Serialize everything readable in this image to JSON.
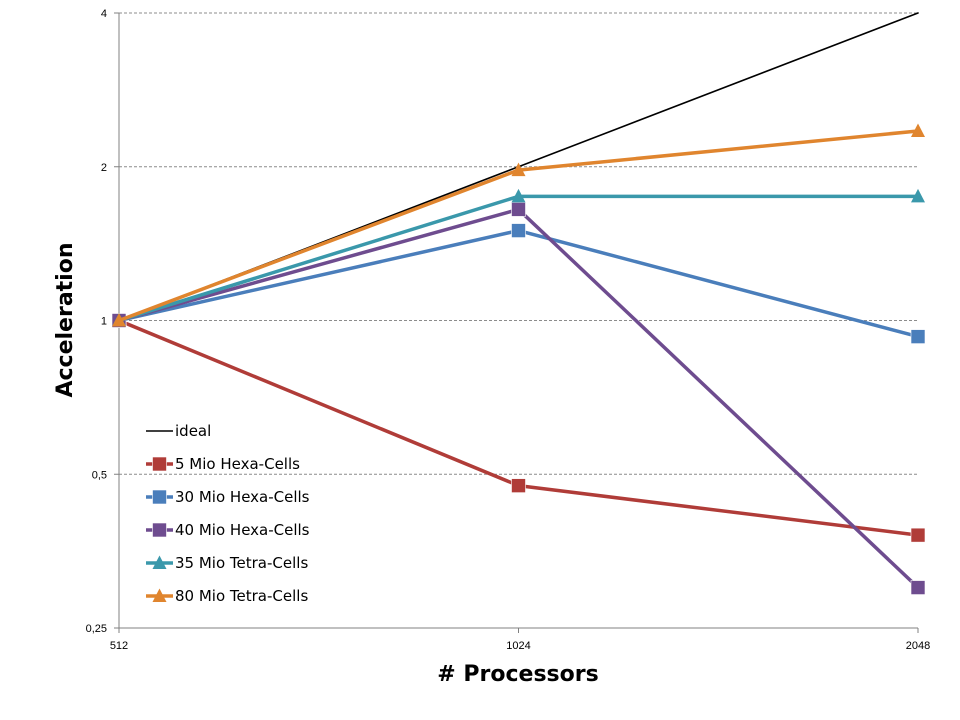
{
  "chart_data": {
    "type": "line",
    "title": "",
    "xlabel": "# Processors",
    "ylabel": "Acceleration",
    "x": [
      512,
      1024,
      2048
    ],
    "x_tick_labels": [
      "512",
      "1024",
      "2048"
    ],
    "y_scale": "log2",
    "ylim": [
      0.25,
      4
    ],
    "y_ticks": [
      0.25,
      0.5,
      1,
      2,
      4
    ],
    "y_tick_labels": [
      "0,25",
      "0,5",
      "1",
      "2",
      "4"
    ],
    "grid": "horizontal dashed",
    "legend_position": "left-middle",
    "series": [
      {
        "name": "ideal",
        "color": "#000000",
        "marker": "none",
        "values": [
          1,
          2,
          4
        ]
      },
      {
        "name": "5 Mio Hexa-Cells",
        "color": "#b03c38",
        "marker": "square",
        "values": [
          1,
          0.475,
          0.38
        ]
      },
      {
        "name": "30 Mio Hexa-Cells",
        "color": "#4a7ebb",
        "marker": "square",
        "values": [
          1,
          1.5,
          0.93
        ]
      },
      {
        "name": "40 Mio Hexa-Cells",
        "color": "#6e4c8f",
        "marker": "square",
        "values": [
          1,
          1.65,
          0.3
        ]
      },
      {
        "name": "35 Mio Tetra-Cells",
        "color": "#3a98ab",
        "marker": "triangle",
        "values": [
          1,
          1.75,
          1.75
        ]
      },
      {
        "name": "80 Mio Tetra-Cells",
        "color": "#e0852e",
        "marker": "triangle",
        "values": [
          1,
          1.97,
          2.35
        ]
      }
    ]
  }
}
